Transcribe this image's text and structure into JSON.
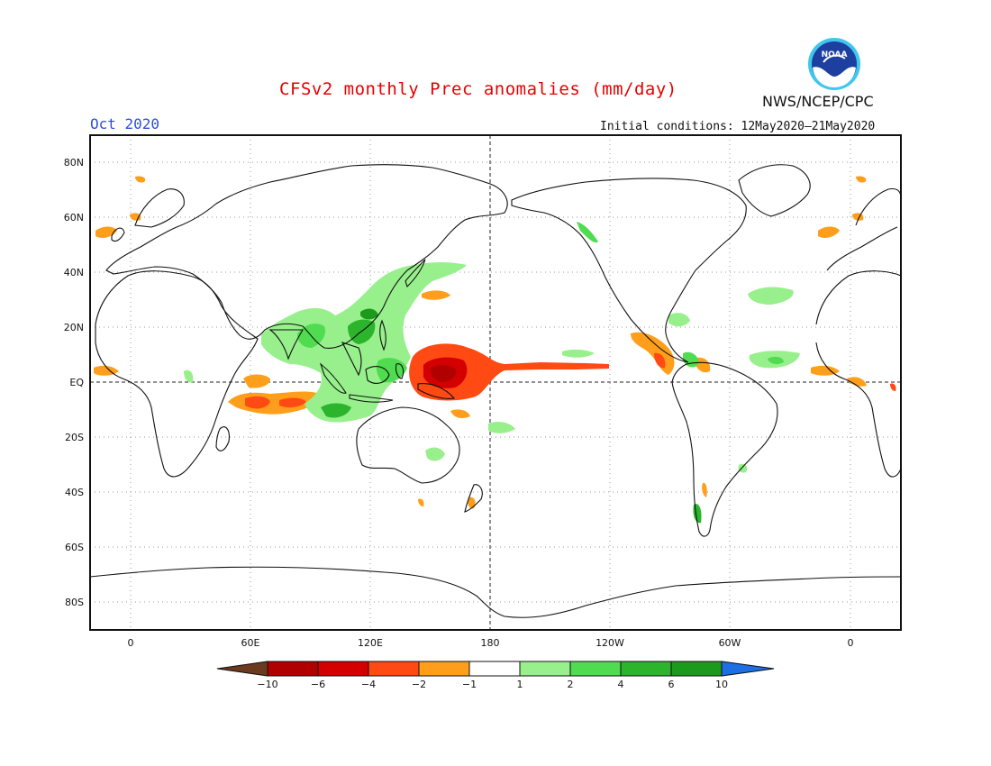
{
  "header": {
    "title": "CFSv2 monthly Prec anomalies (mm/day)",
    "month": "Oct 2020",
    "agency": "NWS/NCEP/CPC",
    "initial_conditions": "Initial conditions: 12May2020–21May2020",
    "logo_text": "NOAA"
  },
  "map": {
    "lat_labels": [
      "80N",
      "60N",
      "40N",
      "20N",
      "EQ",
      "20S",
      "40S",
      "60S",
      "80S"
    ],
    "lon_labels": [
      "0",
      "60E",
      "120E",
      "180",
      "120W",
      "60W",
      "0"
    ]
  },
  "colorbar": {
    "ticks": [
      "−10",
      "−6",
      "−4",
      "−2",
      "−1",
      "1",
      "2",
      "4",
      "6",
      "10"
    ],
    "colors": [
      "#6b3a1f",
      "#b00000",
      "#d40000",
      "#ff4a14",
      "#ff9e1a",
      "#ffffff",
      "#98f08c",
      "#50dc50",
      "#2cb42c",
      "#1c9a1c",
      "#1e6ee6"
    ]
  }
}
